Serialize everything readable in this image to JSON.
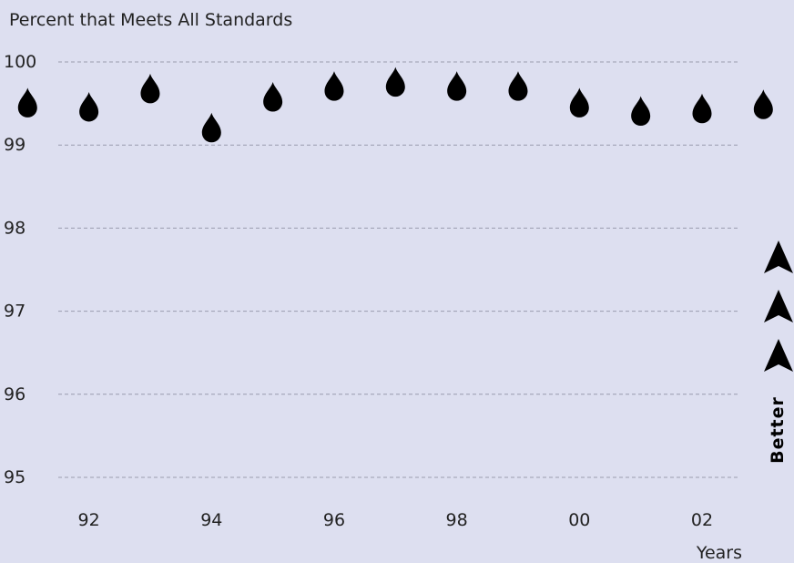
{
  "chart_data": {
    "type": "scatter",
    "title": "Percent that Meets All Standards",
    "xlabel": "Years",
    "ylabel": "",
    "marker": "drop-icon",
    "ylim": [
      95,
      100
    ],
    "xlim": [
      1990.55,
      2003.5
    ],
    "yticks": [
      "95",
      "96",
      "97",
      "98",
      "99",
      "100"
    ],
    "xticks": [
      {
        "value": 1992,
        "label": "92"
      },
      {
        "value": 1994,
        "label": "94"
      },
      {
        "value": 1996,
        "label": "96"
      },
      {
        "value": 1998,
        "label": "98"
      },
      {
        "value": 2000,
        "label": "00"
      },
      {
        "value": 2002,
        "label": "02"
      }
    ],
    "x": [
      1991,
      1992,
      1993,
      1994,
      1995,
      1996,
      1997,
      1998,
      1999,
      2000,
      2001,
      2002,
      2003
    ],
    "y": [
      99.48,
      99.43,
      99.65,
      99.18,
      99.55,
      99.68,
      99.73,
      99.68,
      99.68,
      99.48,
      99.38,
      99.41,
      99.46
    ],
    "grid": true,
    "indicator": {
      "label": "Better",
      "arrows": 3,
      "icon": "arrowhead-up-icon"
    }
  },
  "colors": {
    "background": "#dddff0",
    "marker": "#000000",
    "grid": "#9a9cae",
    "text": "#222222"
  }
}
